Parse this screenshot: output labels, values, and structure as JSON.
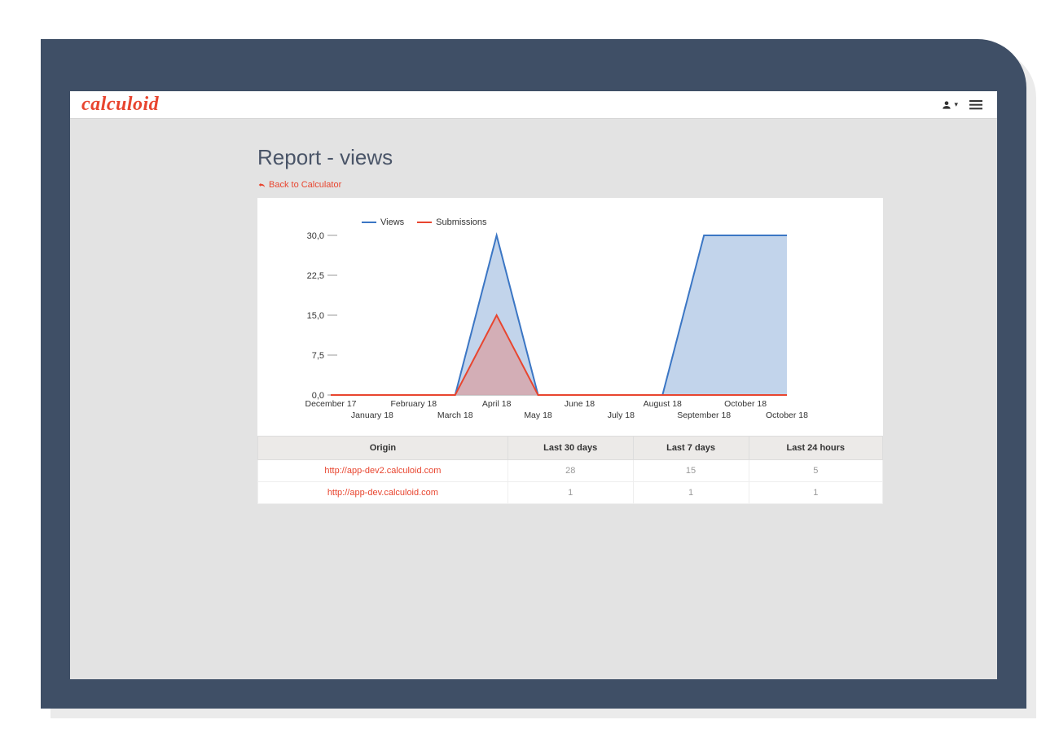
{
  "brand": "calculoid",
  "page_title": "Report - views",
  "back_link_label": "Back to Calculator",
  "chart": {
    "type": "area",
    "legend": [
      {
        "label": "Views",
        "color": "#3b76c4"
      },
      {
        "label": "Submissions",
        "color": "#e8452f"
      }
    ],
    "y": {
      "ticks": [
        "30,0",
        "22,5",
        "15,0",
        "7,5",
        "0,0"
      ],
      "min": 0,
      "max": 30
    },
    "x": {
      "labels_top": [
        "December 17",
        "February 18",
        "April 18",
        "June 18",
        "August 18",
        "October 18"
      ],
      "labels_bot": [
        "January 18",
        "March 18",
        "May 18",
        "July 18",
        "September 18",
        "October 18"
      ]
    },
    "series": {
      "views": [
        0,
        0,
        0,
        0,
        30,
        0,
        0,
        0,
        0,
        30.5,
        30.5,
        30.5
      ],
      "submissions": [
        0,
        0,
        0,
        0,
        15,
        0,
        0,
        0,
        0,
        0,
        0,
        0
      ]
    },
    "colors": {
      "views_stroke": "#3b76c4",
      "views_fill": "#aec6e4",
      "submissions_stroke": "#e8452f",
      "submissions_fill": "#d8a1a4",
      "grid": "#999999",
      "background": "#ffffff"
    },
    "line_width": 2,
    "fill_opacity": 0.75
  },
  "table": {
    "columns": [
      "Origin",
      "Last 30 days",
      "Last 7 days",
      "Last 24 hours"
    ],
    "rows": [
      {
        "origin": "http://app-dev2.calculoid.com",
        "d30": "28",
        "d7": "15",
        "d24": "5"
      },
      {
        "origin": "http://app-dev.calculoid.com",
        "d30": "1",
        "d7": "1",
        "d24": "1"
      }
    ]
  }
}
